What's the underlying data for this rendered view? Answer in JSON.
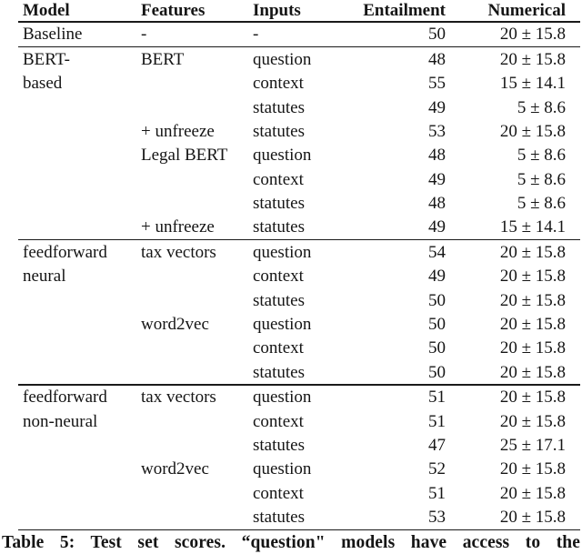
{
  "chart_data": {
    "type": "table",
    "title": "Table 5",
    "columns": [
      "Model",
      "Features",
      "Inputs",
      "Entailment",
      "Numerical"
    ],
    "sections": [
      {
        "name": "baseline",
        "rows": [
          [
            "Baseline",
            "-",
            "-",
            "50",
            "20 ± 15.8"
          ]
        ]
      },
      {
        "name": "bert-based",
        "rows": [
          [
            "BERT-",
            "BERT",
            "question",
            "48",
            "20 ± 15.8"
          ],
          [
            "based",
            "",
            "context",
            "55",
            "15 ± 14.1"
          ],
          [
            "",
            "",
            "statutes",
            "49",
            "5 ± 8.6"
          ],
          [
            "",
            "+ unfreeze",
            "statutes",
            "53",
            "20 ± 15.8"
          ],
          [
            "",
            "Legal BERT",
            "question",
            "48",
            "5 ± 8.6"
          ],
          [
            "",
            "",
            "context",
            "49",
            "5 ± 8.6"
          ],
          [
            "",
            "",
            "statutes",
            "48",
            "5 ± 8.6"
          ],
          [
            "",
            "+ unfreeze",
            "statutes",
            "49",
            "15 ± 14.1"
          ]
        ]
      },
      {
        "name": "feedforward-neural",
        "rows": [
          [
            "feedforward",
            "tax vectors",
            "question",
            "54",
            "20 ± 15.8"
          ],
          [
            "neural",
            "",
            "context",
            "49",
            "20 ± 15.8"
          ],
          [
            "",
            "",
            "statutes",
            "50",
            "20 ± 15.8"
          ],
          [
            "",
            "word2vec",
            "question",
            "50",
            "20 ± 15.8"
          ],
          [
            "",
            "",
            "context",
            "50",
            "20 ± 15.8"
          ],
          [
            "",
            "",
            "statutes",
            "50",
            "20 ± 15.8"
          ]
        ]
      },
      {
        "name": "feedforward-non-neural",
        "rows": [
          [
            "feedforward",
            "tax vectors",
            "question",
            "51",
            "20 ± 15.8"
          ],
          [
            "non-neural",
            "",
            "context",
            "51",
            "20 ± 15.8"
          ],
          [
            "",
            "",
            "statutes",
            "47",
            "25 ± 17.1"
          ],
          [
            "",
            "word2vec",
            "question",
            "52",
            "20 ± 15.8"
          ],
          [
            "",
            "",
            "context",
            "51",
            "20 ± 15.8"
          ],
          [
            "",
            "",
            "statutes",
            "53",
            "20 ± 15.8"
          ]
        ]
      }
    ]
  },
  "caption": {
    "text": "Table 5: Test set scores. “question\" models have access to the"
  },
  "colors": {
    "text": "#151515",
    "rule": "#1a1a1a",
    "background": "#ffffff"
  }
}
